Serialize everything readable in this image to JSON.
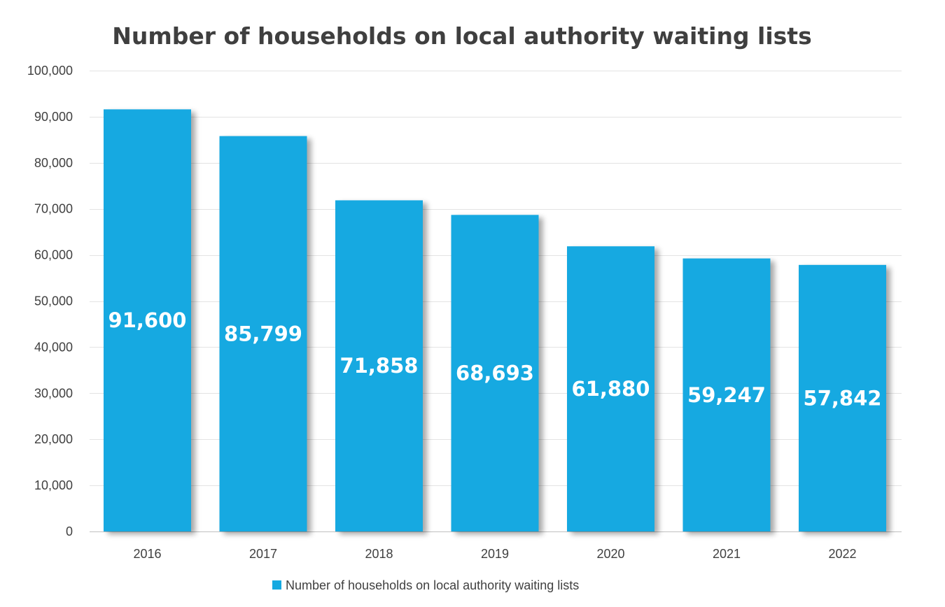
{
  "chart_data": {
    "type": "bar",
    "title": "Number of households on local authority waiting lists",
    "categories": [
      "2016",
      "2017",
      "2018",
      "2019",
      "2020",
      "2021",
      "2022"
    ],
    "series": [
      {
        "name": "Number of households on local authority waiting lists",
        "values": [
          91600,
          85799,
          71858,
          68693,
          61880,
          59247,
          57842
        ],
        "labels": [
          "91,600",
          "85,799",
          "71,858",
          "68,693",
          "61,880",
          "59,247",
          "57,842"
        ]
      }
    ],
    "ylim": [
      0,
      100000
    ],
    "yticks": [
      0,
      10000,
      20000,
      30000,
      40000,
      50000,
      60000,
      70000,
      80000,
      90000,
      100000
    ],
    "ytick_labels": [
      "0",
      "10,000",
      "20,000",
      "30,000",
      "40,000",
      "50,000",
      "60,000",
      "70,000",
      "80,000",
      "90,000",
      "100,000"
    ],
    "grid": true,
    "legend_position": "bottom",
    "bar_color": "#15a9e1",
    "xlabel": "",
    "ylabel": ""
  }
}
